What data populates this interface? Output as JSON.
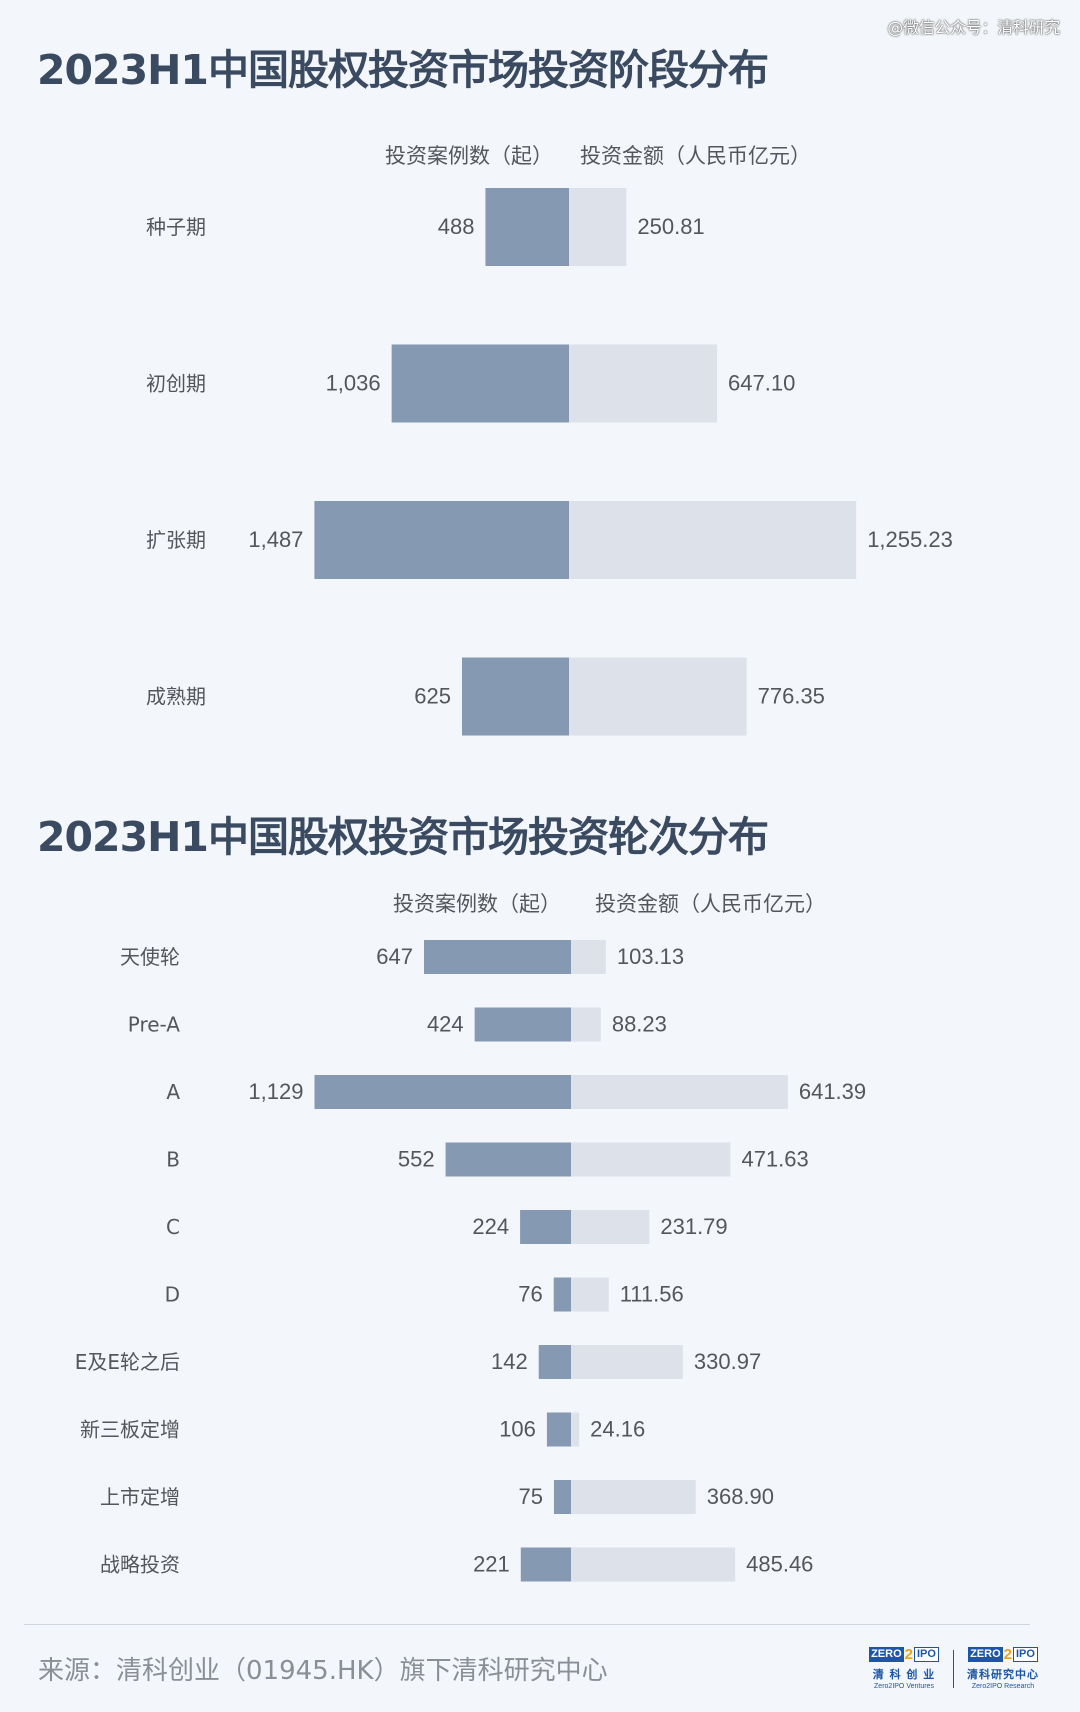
{
  "watermark": "@微信公众号：清科研究",
  "source": "来源：清科创业（01945.HK）旗下清科研究中心",
  "logos": {
    "ventures": {
      "left": "ZERO",
      "two": "2",
      "right": "IPO",
      "name": "清 科 创 业",
      "sub": "Zero2IPO Ventures"
    },
    "research": {
      "left": "ZERO",
      "two": "2",
      "right": "IPO",
      "name": "清科研究中心",
      "sub": "Zero2IPO Research"
    }
  },
  "colors": {
    "count_bar": "#8599b2",
    "amount_bar": "#dde2ea",
    "title": "#3a4a60",
    "background": "#f3f6fa"
  },
  "chart_data": [
    {
      "type": "bar",
      "title": "2023H1中国股权投资市场投资阶段分布",
      "left_header": "投资案例数（起）",
      "right_header": "投资金额（人民币亿元）",
      "categories": [
        "种子期",
        "初创期",
        "扩张期",
        "成熟期"
      ],
      "series": [
        {
          "name": "投资案例数（起）",
          "values": [
            488,
            1036,
            1487,
            625
          ],
          "labels": [
            "488",
            "1,036",
            "1,487",
            "625"
          ]
        },
        {
          "name": "投资金额（人民币亿元）",
          "values": [
            250.81,
            647.1,
            1255.23,
            776.35
          ],
          "labels": [
            "250.81",
            "647.10",
            "1,255.23",
            "776.35"
          ]
        }
      ]
    },
    {
      "type": "bar",
      "title": "2023H1中国股权投资市场投资轮次分布",
      "left_header": "投资案例数（起）",
      "right_header": "投资金额（人民币亿元）",
      "categories": [
        "天使轮",
        "Pre-A",
        "A",
        "B",
        "C",
        "D",
        "E及E轮之后",
        "新三板定增",
        "上市定增",
        "战略投资"
      ],
      "series": [
        {
          "name": "投资案例数（起）",
          "values": [
            647,
            424,
            1129,
            552,
            224,
            76,
            142,
            106,
            75,
            221
          ],
          "labels": [
            "647",
            "424",
            "1,129",
            "552",
            "224",
            "76",
            "142",
            "106",
            "75",
            "221"
          ]
        },
        {
          "name": "投资金额（人民币亿元）",
          "values": [
            103.13,
            88.23,
            641.39,
            471.63,
            231.79,
            111.56,
            330.97,
            24.16,
            368.9,
            485.46
          ],
          "labels": [
            "103.13",
            "88.23",
            "641.39",
            "471.63",
            "231.79",
            "111.56",
            "330.97",
            "24.16",
            "368.90",
            "485.46"
          ]
        }
      ]
    }
  ]
}
